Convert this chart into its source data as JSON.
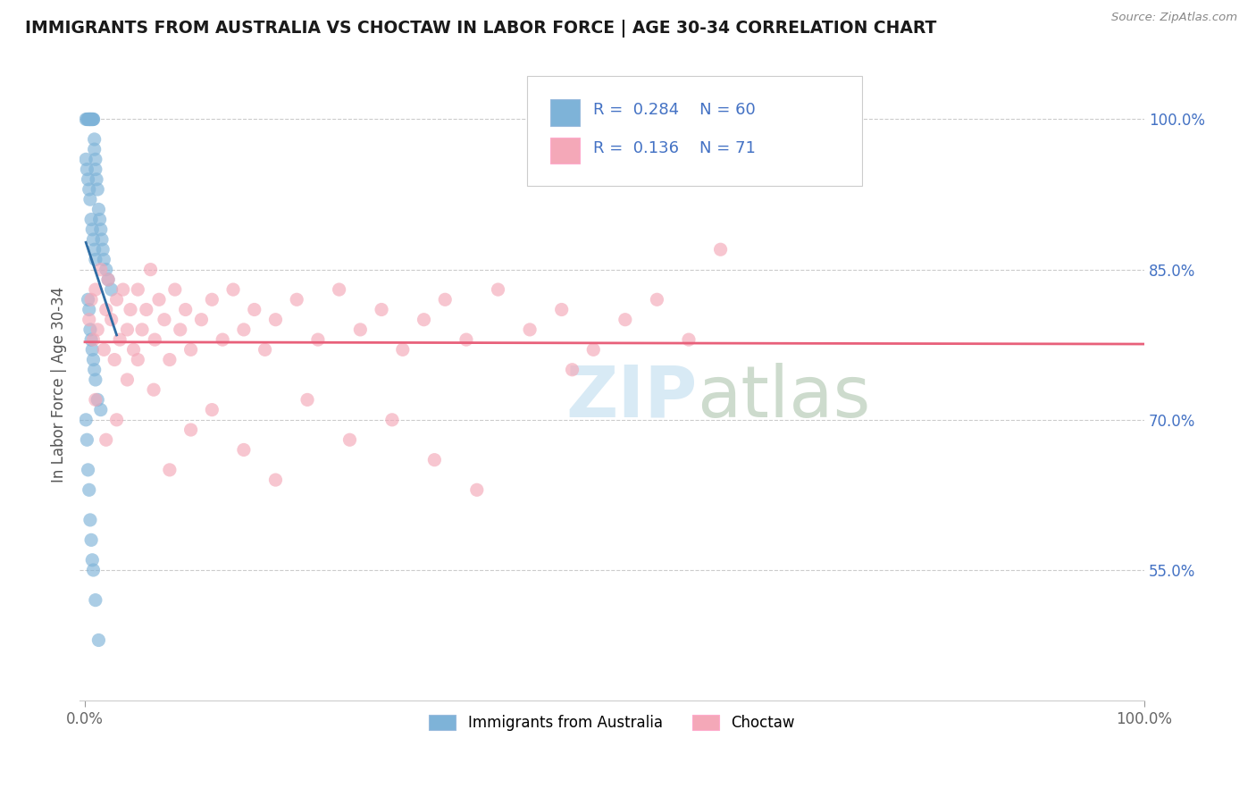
{
  "title": "IMMIGRANTS FROM AUSTRALIA VS CHOCTAW IN LABOR FORCE | AGE 30-34 CORRELATION CHART",
  "source_text": "Source: ZipAtlas.com",
  "ylabel": "In Labor Force | Age 30-34",
  "y_tick_labels": [
    "55.0%",
    "70.0%",
    "85.0%",
    "100.0%"
  ],
  "y_tick_values": [
    0.55,
    0.7,
    0.85,
    1.0
  ],
  "color_australia": "#7EB3D8",
  "color_choctaw": "#F4A8B8",
  "color_line_australia": "#2E6DA4",
  "color_line_choctaw": "#E8607A",
  "color_tick": "#4472C4",
  "background_color": "#FFFFFF",
  "grid_color": "#CCCCCC",
  "watermark_color": "#D8EAF5",
  "legend_box_color": "#F0F0F0",
  "aus_x": [
    0.001,
    0.002,
    0.003,
    0.003,
    0.004,
    0.004,
    0.005,
    0.005,
    0.005,
    0.006,
    0.006,
    0.007,
    0.007,
    0.008,
    0.008,
    0.009,
    0.009,
    0.01,
    0.01,
    0.011,
    0.012,
    0.013,
    0.014,
    0.015,
    0.016,
    0.017,
    0.018,
    0.02,
    0.022,
    0.025,
    0.001,
    0.002,
    0.003,
    0.004,
    0.005,
    0.006,
    0.007,
    0.008,
    0.009,
    0.01,
    0.003,
    0.004,
    0.005,
    0.006,
    0.007,
    0.008,
    0.009,
    0.01,
    0.012,
    0.015,
    0.001,
    0.002,
    0.003,
    0.004,
    0.005,
    0.006,
    0.007,
    0.008,
    0.01,
    0.013
  ],
  "aus_y": [
    1.0,
    1.0,
    1.0,
    1.0,
    1.0,
    1.0,
    1.0,
    1.0,
    1.0,
    1.0,
    1.0,
    1.0,
    1.0,
    1.0,
    1.0,
    0.98,
    0.97,
    0.96,
    0.95,
    0.94,
    0.93,
    0.91,
    0.9,
    0.89,
    0.88,
    0.87,
    0.86,
    0.85,
    0.84,
    0.83,
    0.96,
    0.95,
    0.94,
    0.93,
    0.92,
    0.9,
    0.89,
    0.88,
    0.87,
    0.86,
    0.82,
    0.81,
    0.79,
    0.78,
    0.77,
    0.76,
    0.75,
    0.74,
    0.72,
    0.71,
    0.7,
    0.68,
    0.65,
    0.63,
    0.6,
    0.58,
    0.56,
    0.55,
    0.52,
    0.48
  ],
  "cho_x": [
    0.004,
    0.006,
    0.008,
    0.01,
    0.012,
    0.015,
    0.018,
    0.02,
    0.022,
    0.025,
    0.028,
    0.03,
    0.033,
    0.036,
    0.04,
    0.043,
    0.046,
    0.05,
    0.054,
    0.058,
    0.062,
    0.066,
    0.07,
    0.075,
    0.08,
    0.085,
    0.09,
    0.095,
    0.1,
    0.11,
    0.12,
    0.13,
    0.14,
    0.15,
    0.16,
    0.17,
    0.18,
    0.2,
    0.22,
    0.24,
    0.26,
    0.28,
    0.3,
    0.32,
    0.34,
    0.36,
    0.39,
    0.42,
    0.45,
    0.48,
    0.51,
    0.54,
    0.57,
    0.6,
    0.01,
    0.02,
    0.03,
    0.04,
    0.05,
    0.065,
    0.08,
    0.1,
    0.12,
    0.15,
    0.18,
    0.21,
    0.25,
    0.29,
    0.33,
    0.37,
    0.46
  ],
  "cho_y": [
    0.8,
    0.82,
    0.78,
    0.83,
    0.79,
    0.85,
    0.77,
    0.81,
    0.84,
    0.8,
    0.76,
    0.82,
    0.78,
    0.83,
    0.79,
    0.81,
    0.77,
    0.83,
    0.79,
    0.81,
    0.85,
    0.78,
    0.82,
    0.8,
    0.76,
    0.83,
    0.79,
    0.81,
    0.77,
    0.8,
    0.82,
    0.78,
    0.83,
    0.79,
    0.81,
    0.77,
    0.8,
    0.82,
    0.78,
    0.83,
    0.79,
    0.81,
    0.77,
    0.8,
    0.82,
    0.78,
    0.83,
    0.79,
    0.81,
    0.77,
    0.8,
    0.82,
    0.78,
    0.87,
    0.72,
    0.68,
    0.7,
    0.74,
    0.76,
    0.73,
    0.65,
    0.69,
    0.71,
    0.67,
    0.64,
    0.72,
    0.68,
    0.7,
    0.66,
    0.63,
    0.75
  ]
}
